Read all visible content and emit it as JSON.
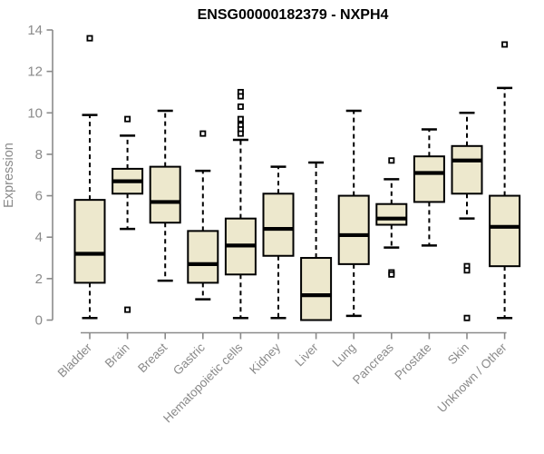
{
  "page": {
    "background": "#ffffff"
  },
  "chart_data": {
    "type": "boxplot",
    "title": "ENSG00000182379 - NXPH4",
    "ylabel": "Expression",
    "xlabel": "",
    "ylim": [
      0,
      14
    ],
    "yticks": [
      0,
      2,
      4,
      6,
      8,
      10,
      12,
      14
    ],
    "grid": false,
    "legend": "none",
    "categories": [
      "Bladder",
      "Brain",
      "Breast",
      "Gastric",
      "Hematopoietic cells",
      "Kidney",
      "Liver",
      "Lung",
      "Pancreas",
      "Prostate",
      "Skin",
      "Unknown / Other"
    ],
    "series": [
      {
        "category": "Bladder",
        "whisker_low": 0.1,
        "q1": 1.8,
        "median": 3.2,
        "q3": 5.8,
        "whisker_high": 9.9,
        "outliers": [
          13.6
        ]
      },
      {
        "category": "Brain",
        "whisker_low": 4.4,
        "q1": 6.1,
        "median": 6.7,
        "q3": 7.3,
        "whisker_high": 8.9,
        "outliers": [
          9.7,
          0.5
        ]
      },
      {
        "category": "Breast",
        "whisker_low": 1.9,
        "q1": 4.7,
        "median": 5.7,
        "q3": 7.4,
        "whisker_high": 10.1,
        "outliers": []
      },
      {
        "category": "Gastric",
        "whisker_low": 1.0,
        "q1": 1.8,
        "median": 2.7,
        "q3": 4.3,
        "whisker_high": 7.2,
        "outliers": [
          9.0
        ]
      },
      {
        "category": "Hematopoietic cells",
        "whisker_low": 0.1,
        "q1": 2.2,
        "median": 3.6,
        "q3": 4.9,
        "whisker_high": 8.7,
        "outliers": [
          11.0,
          10.8,
          10.3,
          9.7,
          9.4,
          9.2,
          9.0
        ]
      },
      {
        "category": "Kidney",
        "whisker_low": 0.1,
        "q1": 3.1,
        "median": 4.4,
        "q3": 6.1,
        "whisker_high": 7.4,
        "outliers": []
      },
      {
        "category": "Liver",
        "whisker_low": 0.0,
        "q1": 0.0,
        "median": 1.2,
        "q3": 3.0,
        "whisker_high": 7.6,
        "outliers": []
      },
      {
        "category": "Lung",
        "whisker_low": 0.2,
        "q1": 2.7,
        "median": 4.1,
        "q3": 6.0,
        "whisker_high": 10.1,
        "outliers": []
      },
      {
        "category": "Pancreas",
        "whisker_low": 3.5,
        "q1": 4.6,
        "median": 4.9,
        "q3": 5.6,
        "whisker_high": 6.8,
        "outliers": [
          7.7,
          2.3,
          2.2
        ]
      },
      {
        "category": "Prostate",
        "whisker_low": 3.6,
        "q1": 5.7,
        "median": 7.1,
        "q3": 7.9,
        "whisker_high": 9.2,
        "outliers": []
      },
      {
        "category": "Skin",
        "whisker_low": 4.9,
        "q1": 6.1,
        "median": 7.7,
        "q3": 8.4,
        "whisker_high": 10.0,
        "outliers": [
          2.6,
          2.4,
          0.1
        ]
      },
      {
        "category": "Unknown / Other",
        "whisker_low": 0.1,
        "q1": 2.6,
        "median": 4.5,
        "q3": 6.0,
        "whisker_high": 11.2,
        "outliers": [
          13.3
        ]
      }
    ],
    "colors": {
      "box_fill": "#EDE8CD",
      "box_border": "#000000",
      "median": "#000000",
      "whisker": "#000000",
      "outlier": "#000000",
      "axis": "#8A8A8A",
      "title": "#000000"
    }
  }
}
